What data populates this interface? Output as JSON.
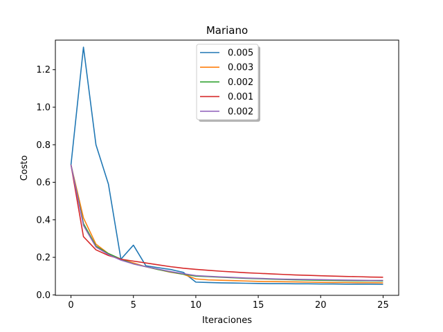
{
  "chart_data": {
    "type": "line",
    "title": "Mariano",
    "xlabel": "Iteraciones",
    "ylabel": "Costo",
    "xlim": [
      -1.25,
      26.25
    ],
    "ylim": [
      -0.0025,
      1.3575
    ],
    "xticks": [
      0,
      5,
      10,
      15,
      20,
      25
    ],
    "xtick_labels": [
      "0",
      "5",
      "10",
      "15",
      "20",
      "25"
    ],
    "yticks": [
      0.0,
      0.2,
      0.4,
      0.6,
      0.8,
      1.0,
      1.2
    ],
    "ytick_labels": [
      "0.0",
      "0.2",
      "0.4",
      "0.6",
      "0.8",
      "1.0",
      "1.2"
    ],
    "grid": false,
    "legend_position": "top-center",
    "x": [
      0,
      1,
      2,
      3,
      4,
      5,
      6,
      7,
      8,
      9,
      10,
      11,
      12,
      13,
      14,
      15,
      16,
      17,
      18,
      19,
      20,
      21,
      22,
      23,
      24,
      25
    ],
    "series": [
      {
        "name": "0.005",
        "color": "#1f77b4",
        "values": [
          0.693,
          1.32,
          0.8,
          0.59,
          0.19,
          0.265,
          0.155,
          0.145,
          0.135,
          0.12,
          0.068,
          0.066,
          0.064,
          0.063,
          0.062,
          0.061,
          0.06,
          0.06,
          0.059,
          0.059,
          0.058,
          0.058,
          0.057,
          0.057,
          0.057,
          0.056
        ]
      },
      {
        "name": "0.003",
        "color": "#ff7f0e",
        "values": [
          0.693,
          0.41,
          0.27,
          0.22,
          0.19,
          0.17,
          0.15,
          0.135,
          0.12,
          0.11,
          0.085,
          0.08,
          0.078,
          0.076,
          0.074,
          0.072,
          0.071,
          0.07,
          0.069,
          0.068,
          0.067,
          0.066,
          0.066,
          0.065,
          0.065,
          0.064
        ]
      },
      {
        "name": "0.002",
        "color": "#2ca02c",
        "values": [
          0.693,
          0.38,
          0.26,
          0.22,
          0.19,
          0.165,
          0.15,
          0.135,
          0.122,
          0.11,
          0.1,
          0.097,
          0.094,
          0.091,
          0.088,
          0.086,
          0.084,
          0.082,
          0.08,
          0.079,
          0.078,
          0.077,
          0.076,
          0.075,
          0.075,
          0.074
        ]
      },
      {
        "name": "0.001",
        "color": "#d62728",
        "values": [
          0.693,
          0.31,
          0.24,
          0.21,
          0.19,
          0.18,
          0.17,
          0.16,
          0.15,
          0.142,
          0.136,
          0.131,
          0.126,
          0.122,
          0.118,
          0.115,
          0.112,
          0.109,
          0.106,
          0.104,
          0.102,
          0.1,
          0.098,
          0.097,
          0.095,
          0.094
        ]
      },
      {
        "name": "0.002",
        "color": "#9467bd",
        "values": [
          0.693,
          0.37,
          0.255,
          0.215,
          0.185,
          0.165,
          0.15,
          0.137,
          0.124,
          0.113,
          0.103,
          0.099,
          0.096,
          0.093,
          0.09,
          0.088,
          0.086,
          0.084,
          0.083,
          0.082,
          0.081,
          0.08,
          0.079,
          0.078,
          0.077,
          0.077
        ]
      }
    ]
  }
}
